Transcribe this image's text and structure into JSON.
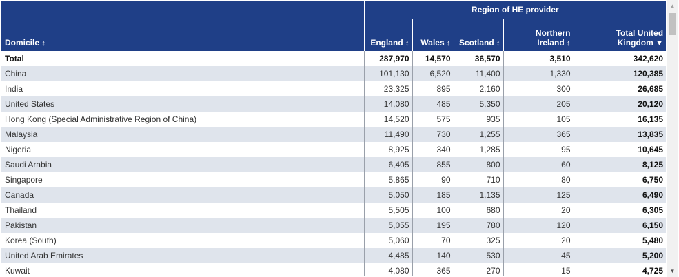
{
  "table": {
    "group_header": "Region of HE provider",
    "columns": {
      "domicile": "Domicile",
      "england": "England",
      "wales": "Wales",
      "scotland": "Scotland",
      "ni_line1": "Northern",
      "ni_line2": "Ireland",
      "total_line1": "Total United",
      "total_line2": "Kingdom"
    },
    "sort_icon": "↕",
    "sort_desc_icon": "▼",
    "rows": [
      {
        "domicile": "Total",
        "england": "287,970",
        "wales": "14,570",
        "scotland": "36,570",
        "ni": "3,510",
        "total": "342,620"
      },
      {
        "domicile": "China",
        "england": "101,130",
        "wales": "6,520",
        "scotland": "11,400",
        "ni": "1,330",
        "total": "120,385"
      },
      {
        "domicile": "India",
        "england": "23,325",
        "wales": "895",
        "scotland": "2,160",
        "ni": "300",
        "total": "26,685"
      },
      {
        "domicile": "United States",
        "england": "14,080",
        "wales": "485",
        "scotland": "5,350",
        "ni": "205",
        "total": "20,120"
      },
      {
        "domicile": "Hong Kong (Special Administrative Region of China)",
        "england": "14,520",
        "wales": "575",
        "scotland": "935",
        "ni": "105",
        "total": "16,135"
      },
      {
        "domicile": "Malaysia",
        "england": "11,490",
        "wales": "730",
        "scotland": "1,255",
        "ni": "365",
        "total": "13,835"
      },
      {
        "domicile": "Nigeria",
        "england": "8,925",
        "wales": "340",
        "scotland": "1,285",
        "ni": "95",
        "total": "10,645"
      },
      {
        "domicile": "Saudi Arabia",
        "england": "6,405",
        "wales": "855",
        "scotland": "800",
        "ni": "60",
        "total": "8,125"
      },
      {
        "domicile": "Singapore",
        "england": "5,865",
        "wales": "90",
        "scotland": "710",
        "ni": "80",
        "total": "6,750"
      },
      {
        "domicile": "Canada",
        "england": "5,050",
        "wales": "185",
        "scotland": "1,135",
        "ni": "125",
        "total": "6,490"
      },
      {
        "domicile": "Thailand",
        "england": "5,505",
        "wales": "100",
        "scotland": "680",
        "ni": "20",
        "total": "6,305"
      },
      {
        "domicile": "Pakistan",
        "england": "5,055",
        "wales": "195",
        "scotland": "780",
        "ni": "120",
        "total": "6,150"
      },
      {
        "domicile": "Korea (South)",
        "england": "5,060",
        "wales": "70",
        "scotland": "325",
        "ni": "20",
        "total": "5,480"
      },
      {
        "domicile": "United Arab Emirates",
        "england": "4,485",
        "wales": "140",
        "scotland": "530",
        "ni": "45",
        "total": "5,200"
      },
      {
        "domicile": "Kuwait",
        "england": "4,080",
        "wales": "365",
        "scotland": "270",
        "ni": "15",
        "total": "4,725"
      }
    ]
  },
  "scrollbar": {
    "up_icon": "▲",
    "down_icon": "▼"
  },
  "colors": {
    "header_bg": "#1f3f87",
    "stripe": "#dfe4ec"
  }
}
